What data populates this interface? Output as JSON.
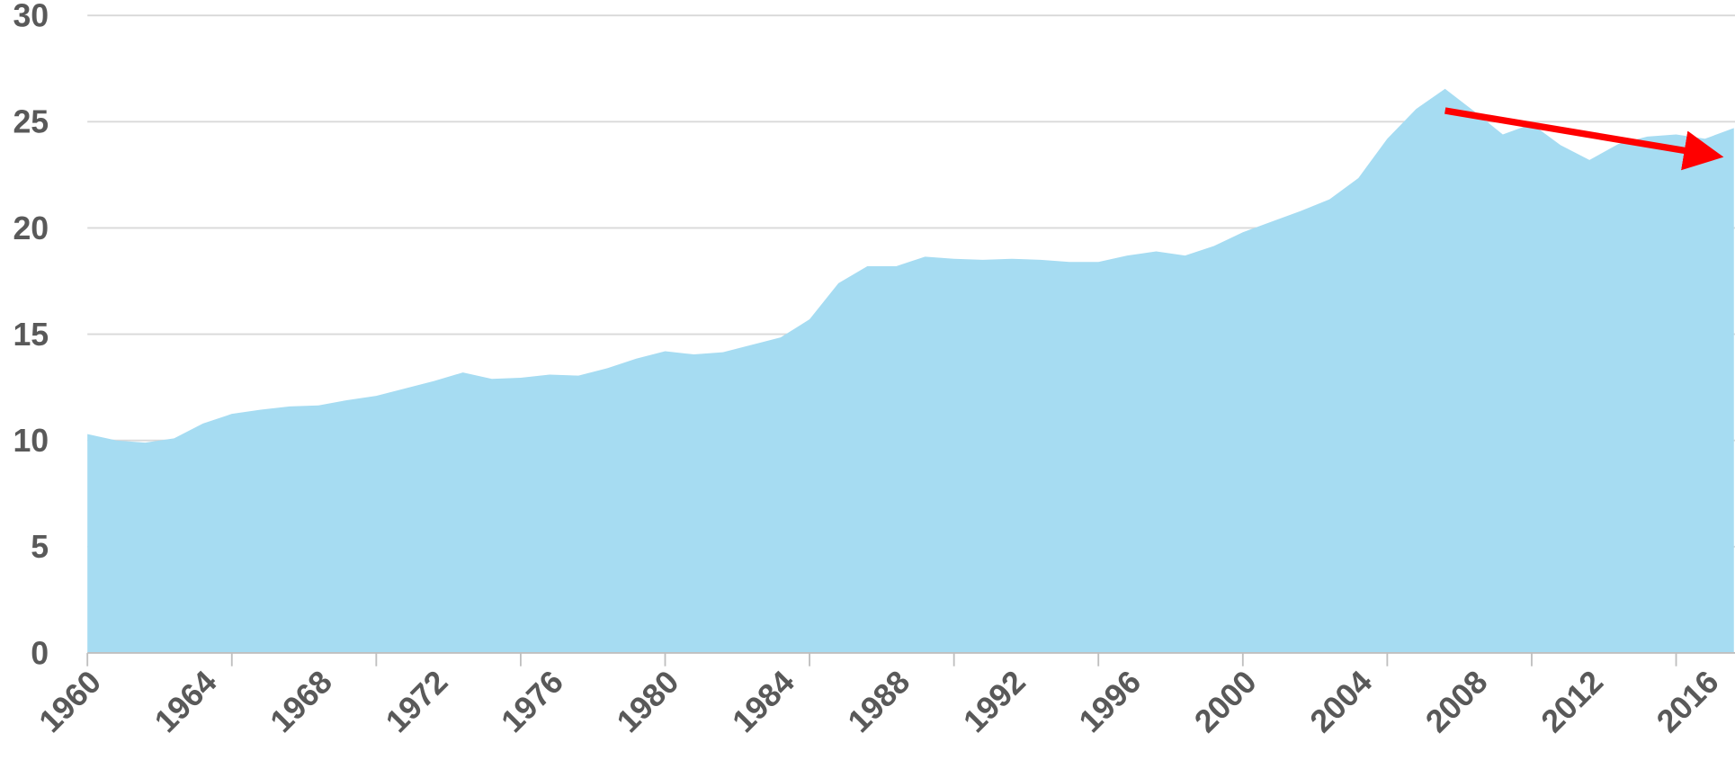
{
  "chart_data": {
    "type": "area",
    "x": [
      1960,
      1961,
      1962,
      1963,
      1964,
      1965,
      1966,
      1967,
      1968,
      1969,
      1970,
      1971,
      1972,
      1973,
      1974,
      1975,
      1976,
      1977,
      1978,
      1979,
      1980,
      1981,
      1982,
      1983,
      1984,
      1985,
      1986,
      1987,
      1988,
      1989,
      1990,
      1991,
      1992,
      1993,
      1994,
      1995,
      1996,
      1997,
      1998,
      1999,
      2000,
      2001,
      2002,
      2003,
      2004,
      2005,
      2006,
      2007,
      2008,
      2009,
      2010,
      2011,
      2012,
      2013,
      2014,
      2015,
      2016,
      2017
    ],
    "values": [
      10.3,
      10.0,
      9.9,
      10.1,
      10.8,
      11.25,
      11.45,
      11.6,
      11.65,
      11.9,
      12.1,
      12.45,
      12.8,
      13.2,
      12.9,
      12.95,
      13.1,
      13.05,
      13.4,
      13.85,
      14.2,
      14.05,
      14.15,
      14.5,
      14.85,
      15.7,
      17.4,
      18.2,
      18.2,
      18.65,
      18.55,
      18.5,
      18.55,
      18.5,
      18.4,
      18.4,
      18.7,
      18.9,
      18.7,
      19.15,
      19.8,
      20.3,
      20.8,
      21.35,
      22.35,
      24.2,
      25.6,
      26.55,
      25.5,
      24.4,
      24.9,
      23.9,
      23.2,
      23.95,
      24.3,
      24.4,
      24.2,
      24.7
    ],
    "color": "#a6dcf2",
    "xlim": [
      1960,
      2017
    ],
    "xticks": [
      1960,
      1964,
      1968,
      1972,
      1976,
      1980,
      1984,
      1988,
      1992,
      1996,
      2000,
      2004,
      2008,
      2012,
      2016
    ],
    "xtick_marks": [
      1960,
      1965,
      1970,
      1975,
      1980,
      1985,
      1990,
      1995,
      2000,
      2005,
      2010,
      2015
    ],
    "ylim": [
      0,
      30
    ],
    "yticks": [
      0,
      5,
      10,
      15,
      20,
      25,
      30
    ],
    "grid": true
  }
}
